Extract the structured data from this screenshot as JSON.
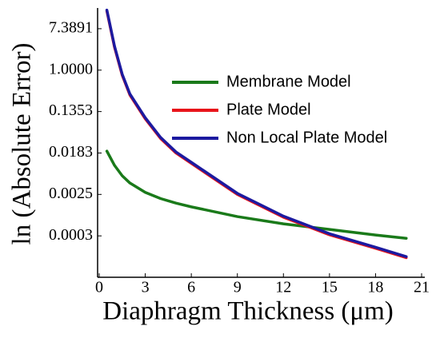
{
  "chart_data": {
    "type": "line",
    "xlabel": "Diaphragm Thickness (μm)",
    "ylabel": "ln (Absolute Error)",
    "x": [
      0.5,
      1,
      1.5,
      2,
      3,
      4,
      5,
      6,
      9,
      12,
      15,
      18,
      20
    ],
    "series": [
      {
        "name": "Membrane Model",
        "color": "#1a7a1a",
        "values": [
          0.02004,
          0.01005,
          0.006097,
          0.004296,
          0.002739,
          0.002029,
          0.001627,
          0.00136,
          0.00085,
          0.000599,
          0.000457,
          0.000349,
          0.000298
        ]
      },
      {
        "name": "Plate Model",
        "color": "#e8141a",
        "values": [
          17.29,
          3.004,
          0.7788,
          0.3012,
          0.09537,
          0.03688,
          0.01832,
          0.01111,
          0.002479,
          0.000825,
          0.000353,
          0.000184,
          0.000117
        ]
      },
      {
        "name": "Non Local Plate Model",
        "color": "#1c1aa0",
        "values": [
          18.17,
          3.158,
          0.8187,
          0.3166,
          0.1003,
          0.03877,
          0.01925,
          0.01168,
          0.002606,
          0.000867,
          0.000371,
          0.000193,
          0.000123
        ]
      }
    ],
    "xlim": [
      0,
      21
    ],
    "xticks": [
      0,
      3,
      6,
      9,
      12,
      15,
      18,
      21
    ],
    "ylim": [
      4.54e-05,
      20.0855
    ],
    "ylog": true,
    "yticks": [
      {
        "value": 0.000335,
        "label": "0.0003"
      },
      {
        "value": 0.00248,
        "label": "0.0025"
      },
      {
        "value": 0.0183,
        "label": "0.0183"
      },
      {
        "value": 0.1353,
        "label": "0.1353"
      },
      {
        "value": 1,
        "label": "1.0000"
      },
      {
        "value": 7.3891,
        "label": "7.3891"
      }
    ],
    "legend": "upper right"
  }
}
